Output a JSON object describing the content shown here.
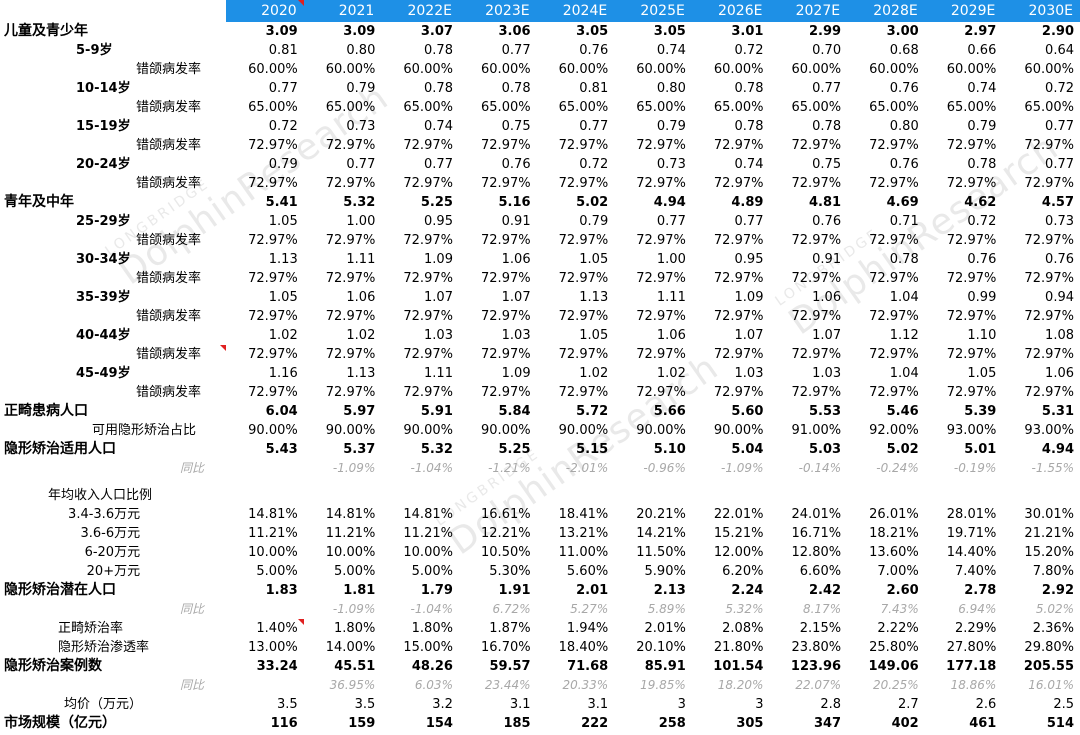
{
  "watermark": {
    "brand": "LONGBRIDGE",
    "name": "DolphinResearch"
  },
  "header": {
    "corner_label": "",
    "years": [
      "2020",
      "2021",
      "2022E",
      "2023E",
      "2024E",
      "2025E",
      "2026E",
      "2027E",
      "2028E",
      "2029E",
      "2030E"
    ]
  },
  "rows": [
    {
      "label": "儿童及青少年",
      "kind": "bold",
      "values": [
        "3.09",
        "3.09",
        "3.07",
        "3.06",
        "3.05",
        "3.05",
        "3.01",
        "2.99",
        "3.00",
        "2.97",
        "2.90"
      ]
    },
    {
      "label": "5-9岁",
      "kind": "ind1",
      "values": [
        "0.81",
        "0.80",
        "0.78",
        "0.77",
        "0.76",
        "0.74",
        "0.72",
        "0.70",
        "0.68",
        "0.66",
        "0.64"
      ]
    },
    {
      "label": "错颌病发率",
      "kind": "ind2",
      "values": [
        "60.00%",
        "60.00%",
        "60.00%",
        "60.00%",
        "60.00%",
        "60.00%",
        "60.00%",
        "60.00%",
        "60.00%",
        "60.00%",
        "60.00%"
      ]
    },
    {
      "label": "10-14岁",
      "kind": "ind1",
      "values": [
        "0.77",
        "0.79",
        "0.78",
        "0.78",
        "0.81",
        "0.80",
        "0.78",
        "0.77",
        "0.76",
        "0.74",
        "0.72"
      ]
    },
    {
      "label": "错颌病发率",
      "kind": "ind2",
      "values": [
        "65.00%",
        "65.00%",
        "65.00%",
        "65.00%",
        "65.00%",
        "65.00%",
        "65.00%",
        "65.00%",
        "65.00%",
        "65.00%",
        "65.00%"
      ]
    },
    {
      "label": "15-19岁",
      "kind": "ind1",
      "values": [
        "0.72",
        "0.73",
        "0.74",
        "0.75",
        "0.77",
        "0.79",
        "0.78",
        "0.78",
        "0.80",
        "0.79",
        "0.77"
      ]
    },
    {
      "label": "错颌病发率",
      "kind": "ind2",
      "values": [
        "72.97%",
        "72.97%",
        "72.97%",
        "72.97%",
        "72.97%",
        "72.97%",
        "72.97%",
        "72.97%",
        "72.97%",
        "72.97%",
        "72.97%"
      ]
    },
    {
      "label": "20-24岁",
      "kind": "ind1",
      "values": [
        "0.79",
        "0.77",
        "0.77",
        "0.76",
        "0.72",
        "0.73",
        "0.74",
        "0.75",
        "0.76",
        "0.78",
        "0.77"
      ]
    },
    {
      "label": "错颌病发率",
      "kind": "ind2",
      "values": [
        "72.97%",
        "72.97%",
        "72.97%",
        "72.97%",
        "72.97%",
        "72.97%",
        "72.97%",
        "72.97%",
        "72.97%",
        "72.97%",
        "72.97%"
      ]
    },
    {
      "label": "青年及中年",
      "kind": "bold",
      "values": [
        "5.41",
        "5.32",
        "5.25",
        "5.16",
        "5.02",
        "4.94",
        "4.89",
        "4.81",
        "4.69",
        "4.62",
        "4.57"
      ]
    },
    {
      "label": "25-29岁",
      "kind": "ind1",
      "values": [
        "1.05",
        "1.00",
        "0.95",
        "0.91",
        "0.79",
        "0.77",
        "0.77",
        "0.76",
        "0.71",
        "0.72",
        "0.73"
      ]
    },
    {
      "label": "错颌病发率",
      "kind": "ind2",
      "values": [
        "72.97%",
        "72.97%",
        "72.97%",
        "72.97%",
        "72.97%",
        "72.97%",
        "72.97%",
        "72.97%",
        "72.97%",
        "72.97%",
        "72.97%"
      ]
    },
    {
      "label": "30-34岁",
      "kind": "ind1",
      "values": [
        "1.13",
        "1.11",
        "1.09",
        "1.06",
        "1.05",
        "1.00",
        "0.95",
        "0.91",
        "0.78",
        "0.76",
        "0.76"
      ]
    },
    {
      "label": "错颌病发率",
      "kind": "ind2",
      "values": [
        "72.97%",
        "72.97%",
        "72.97%",
        "72.97%",
        "72.97%",
        "72.97%",
        "72.97%",
        "72.97%",
        "72.97%",
        "72.97%",
        "72.97%"
      ]
    },
    {
      "label": "35-39岁",
      "kind": "ind1",
      "values": [
        "1.05",
        "1.06",
        "1.07",
        "1.07",
        "1.13",
        "1.11",
        "1.09",
        "1.06",
        "1.04",
        "0.99",
        "0.94"
      ]
    },
    {
      "label": "错颌病发率",
      "kind": "ind2",
      "values": [
        "72.97%",
        "72.97%",
        "72.97%",
        "72.97%",
        "72.97%",
        "72.97%",
        "72.97%",
        "72.97%",
        "72.97%",
        "72.97%",
        "72.97%"
      ]
    },
    {
      "label": "40-44岁",
      "kind": "ind1",
      "values": [
        "1.02",
        "1.02",
        "1.03",
        "1.03",
        "1.05",
        "1.06",
        "1.07",
        "1.07",
        "1.12",
        "1.10",
        "1.08"
      ]
    },
    {
      "label": "错颌病发率",
      "kind": "ind2",
      "mark": true,
      "values": [
        "72.97%",
        "72.97%",
        "72.97%",
        "72.97%",
        "72.97%",
        "72.97%",
        "72.97%",
        "72.97%",
        "72.97%",
        "72.97%",
        "72.97%"
      ]
    },
    {
      "label": "45-49岁",
      "kind": "ind1",
      "values": [
        "1.16",
        "1.13",
        "1.11",
        "1.09",
        "1.02",
        "1.02",
        "1.03",
        "1.03",
        "1.04",
        "1.05",
        "1.06"
      ]
    },
    {
      "label": "错颌病发率",
      "kind": "ind2",
      "values": [
        "72.97%",
        "72.97%",
        "72.97%",
        "72.97%",
        "72.97%",
        "72.97%",
        "72.97%",
        "72.97%",
        "72.97%",
        "72.97%",
        "72.97%"
      ]
    },
    {
      "label": "正畸患病人口",
      "kind": "bold",
      "values": [
        "6.04",
        "5.97",
        "5.91",
        "5.84",
        "5.72",
        "5.66",
        "5.60",
        "5.53",
        "5.46",
        "5.39",
        "5.31"
      ]
    },
    {
      "label": "可用隐形矫治占比",
      "kind": "ind-rate",
      "values": [
        "90.00%",
        "90.00%",
        "90.00%",
        "90.00%",
        "90.00%",
        "90.00%",
        "90.00%",
        "91.00%",
        "92.00%",
        "93.00%",
        "93.00%"
      ]
    },
    {
      "label": "隐形矫治适用人口",
      "kind": "bold",
      "values": [
        "5.43",
        "5.37",
        "5.32",
        "5.25",
        "5.15",
        "5.10",
        "5.04",
        "5.03",
        "5.02",
        "5.01",
        "4.94"
      ]
    },
    {
      "label": "同比",
      "kind": "yoy",
      "values": [
        "",
        "-1.09%",
        "-1.04%",
        "-1.21%",
        "-2.01%",
        "-0.96%",
        "-1.09%",
        "-0.14%",
        "-0.24%",
        "-0.19%",
        "-1.55%"
      ]
    },
    {
      "label": "",
      "kind": "spacer",
      "values": []
    },
    {
      "label": "年均收入人口比例",
      "kind": "ind-income",
      "values": [
        "",
        "",
        "",
        "",
        "",
        "",
        "",
        "",
        "",
        "",
        ""
      ]
    },
    {
      "label": "3.4-3.6万元",
      "kind": "ind-income2",
      "values": [
        "14.81%",
        "14.81%",
        "14.81%",
        "16.61%",
        "18.41%",
        "20.21%",
        "22.01%",
        "24.01%",
        "26.01%",
        "28.01%",
        "30.01%"
      ]
    },
    {
      "label": "3.6-6万元",
      "kind": "ind-income2",
      "values": [
        "11.21%",
        "11.21%",
        "11.21%",
        "12.21%",
        "13.21%",
        "14.21%",
        "15.21%",
        "16.71%",
        "18.21%",
        "19.71%",
        "21.21%"
      ]
    },
    {
      "label": "6-20万元",
      "kind": "ind-income2",
      "values": [
        "10.00%",
        "10.00%",
        "10.00%",
        "10.50%",
        "11.00%",
        "11.50%",
        "12.00%",
        "12.80%",
        "13.60%",
        "14.40%",
        "15.20%"
      ]
    },
    {
      "label": "20+万元",
      "kind": "ind-income2",
      "values": [
        "5.00%",
        "5.00%",
        "5.00%",
        "5.30%",
        "5.60%",
        "5.90%",
        "6.20%",
        "6.60%",
        "7.00%",
        "7.40%",
        "7.80%"
      ]
    },
    {
      "label": "隐形矫治潜在人口",
      "kind": "bold",
      "values": [
        "1.83",
        "1.81",
        "1.79",
        "1.91",
        "2.01",
        "2.13",
        "2.24",
        "2.42",
        "2.60",
        "2.78",
        "2.92"
      ]
    },
    {
      "label": "同比",
      "kind": "yoy",
      "values": [
        "",
        "-1.09%",
        "-1.04%",
        "6.72%",
        "5.27%",
        "5.89%",
        "5.32%",
        "8.17%",
        "7.43%",
        "6.94%",
        "5.02%"
      ]
    },
    {
      "label": "正畸矫治率",
      "kind": "ind-treat",
      "markFirst": true,
      "values": [
        "1.40%",
        "1.80%",
        "1.80%",
        "1.87%",
        "1.94%",
        "2.01%",
        "2.08%",
        "2.15%",
        "2.22%",
        "2.29%",
        "2.36%"
      ]
    },
    {
      "label": "隐形矫治渗透率",
      "kind": "ind-treat",
      "values": [
        "13.00%",
        "14.00%",
        "15.00%",
        "16.70%",
        "18.40%",
        "20.10%",
        "21.80%",
        "23.80%",
        "25.80%",
        "27.80%",
        "29.80%"
      ]
    },
    {
      "label": "隐形矫治案例数",
      "kind": "bold",
      "values": [
        "33.24",
        "45.51",
        "48.26",
        "59.57",
        "71.68",
        "85.91",
        "101.54",
        "123.96",
        "149.06",
        "177.18",
        "205.55"
      ]
    },
    {
      "label": "同比",
      "kind": "yoy",
      "values": [
        "",
        "36.95%",
        "6.03%",
        "23.44%",
        "20.33%",
        "19.85%",
        "18.20%",
        "22.07%",
        "20.25%",
        "18.86%",
        "16.01%"
      ]
    },
    {
      "label": "均价（万元）",
      "kind": "ind-avg",
      "values": [
        "3.5",
        "3.5",
        "3.2",
        "3.1",
        "3.1",
        "3",
        "3",
        "2.8",
        "2.7",
        "2.6",
        "2.5"
      ]
    },
    {
      "label": "市场规模（亿元）",
      "kind": "bold",
      "values": [
        "116",
        "159",
        "154",
        "185",
        "222",
        "258",
        "305",
        "347",
        "402",
        "461",
        "514"
      ]
    }
  ]
}
